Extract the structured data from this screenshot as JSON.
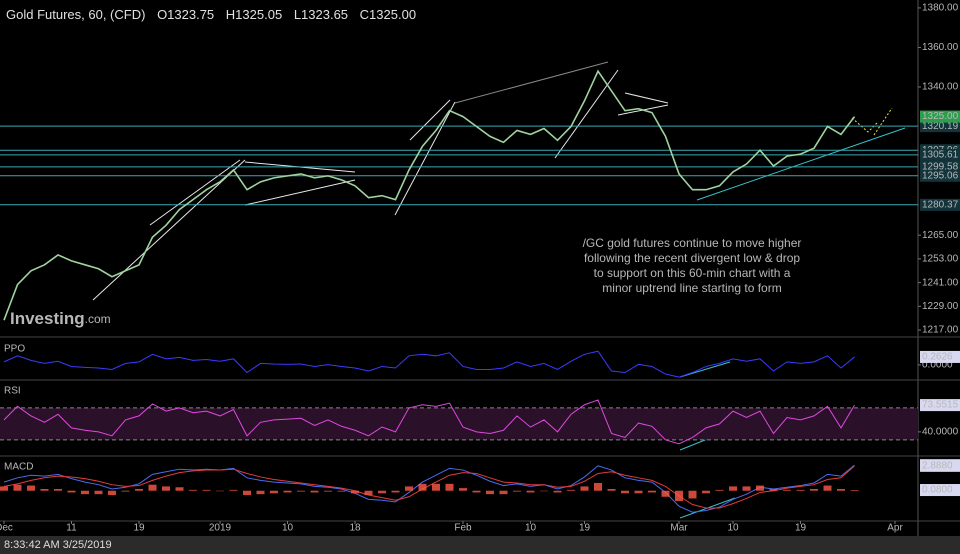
{
  "chart_data": [
    {
      "type": "line",
      "title": "Gold Futures, 60, (CFD)",
      "ohlc": [
        {
          "value": 1323.75,
          "label": "O1323.75"
        },
        {
          "value": 1325.05,
          "label": "H1325.05"
        },
        {
          "value": 1323.65,
          "label": "L1323.65"
        },
        {
          "value": 1325.0,
          "label": "C1325.00"
        }
      ],
      "categories": [
        "Dec",
        null,
        null,
        null,
        null,
        "11",
        null,
        null,
        null,
        null,
        "19",
        null,
        null,
        null,
        null,
        null,
        "2019",
        null,
        null,
        null,
        null,
        "10",
        null,
        null,
        null,
        null,
        "18",
        null,
        null,
        null,
        null,
        null,
        null,
        null,
        "Feb",
        null,
        null,
        null,
        null,
        "10",
        null,
        null,
        null,
        "19",
        null,
        null,
        null,
        null,
        null,
        null,
        "Mar",
        null,
        null,
        null,
        "10",
        null,
        null,
        null,
        null,
        "19",
        null,
        null,
        null,
        null,
        null,
        null,
        "Apr",
        null
      ],
      "series": [
        {
          "color": "#9fd39f",
          "values": [
            1222,
            1240,
            1247,
            1250,
            1255,
            1252,
            1250,
            1248,
            1244,
            1247,
            1250,
            1264,
            1270,
            1278,
            1283,
            1288,
            1292,
            1298,
            1288,
            1292,
            1294,
            1295,
            1296,
            1294,
            1295,
            1293,
            1290,
            1284,
            1285,
            1283,
            1298,
            1310,
            1318,
            1328,
            1325,
            1320,
            1315,
            1312,
            1318,
            1316,
            1319,
            1313,
            1320,
            1333,
            1348,
            1338,
            1328,
            1329,
            1327,
            1315,
            1296,
            1288,
            1288,
            1290,
            1297,
            1301,
            1308,
            1300,
            1305,
            1306,
            1309,
            1320,
            1316,
            1325,
            null,
            null,
            null,
            null
          ],
          "value_labels": [
            null,
            null,
            null,
            null,
            null,
            null,
            null,
            null,
            null,
            null,
            null,
            null,
            null,
            null,
            null,
            null,
            null,
            null,
            null,
            null,
            null,
            null,
            null,
            null,
            null,
            null,
            null,
            null,
            null,
            null,
            null,
            null,
            null,
            null,
            null,
            null,
            null,
            null,
            null,
            null,
            null,
            null,
            null,
            null,
            null,
            null,
            null,
            null,
            null,
            null,
            null,
            null,
            null,
            null,
            null,
            null,
            null,
            null,
            null,
            null,
            null,
            null,
            null,
            "1325.00",
            null,
            null,
            null,
            null
          ]
        }
      ],
      "ylim": [
        1215,
        1384
      ],
      "yticks": [
        {
          "value": 1380,
          "label": "1380.00"
        },
        {
          "value": 1360,
          "label": "1360.00"
        },
        {
          "value": 1340,
          "label": "1340.00"
        },
        {
          "value": 1265,
          "label": "1265.00"
        },
        {
          "value": 1253,
          "label": "1253.00"
        },
        {
          "value": 1241,
          "label": "1241.00"
        },
        {
          "value": 1229,
          "label": "1229.00"
        },
        {
          "value": 1217,
          "label": "1217.00"
        }
      ],
      "levels": [
        1320.19,
        1307.96,
        1305.61,
        1299.58,
        1295.06,
        1280.37
      ],
      "level_color": "#3aa8b4",
      "annotation": [
        "/GC gold futures continue to move higher",
        "following the recent divergent low & drop",
        "to support on this 60-min chart with a",
        "minor uptrend line starting to form"
      ],
      "logo": [
        "Investing",
        ".com"
      ]
    },
    {
      "type": "line",
      "title": "PPO",
      "series": [
        {
          "color": "#3b3bff",
          "values": [
            0.1,
            0.3,
            0.15,
            0.05,
            0.12,
            -0.05,
            -0.08,
            -0.1,
            -0.15,
            0.05,
            0.1,
            0.35,
            0.2,
            0.25,
            0.15,
            0.18,
            0.12,
            0.2,
            -0.25,
            0.05,
            0.03,
            0.02,
            0.03,
            -0.05,
            0.01,
            -0.05,
            -0.1,
            -0.2,
            -0.05,
            -0.1,
            0.3,
            0.35,
            0.3,
            0.4,
            -0.05,
            -0.15,
            -0.15,
            -0.1,
            0.1,
            -0.05,
            0.05,
            -0.15,
            0.12,
            0.35,
            0.45,
            -0.2,
            -0.25,
            0.02,
            -0.05,
            -0.3,
            -0.4,
            -0.25,
            -0.05,
            0.05,
            0.2,
            0.12,
            0.2,
            -0.2,
            0.1,
            0.05,
            0.1,
            0.3,
            -0.1,
            0.2626,
            null,
            null,
            null,
            null
          ]
        }
      ],
      "ylim": [
        -0.43,
        0.82
      ],
      "yticks": [
        {
          "value": 0,
          "label": "0.0000"
        }
      ]
    },
    {
      "type": "line",
      "title": "RSI",
      "series": [
        {
          "color": "#e048e0",
          "values": [
            55,
            72,
            60,
            52,
            62,
            45,
            42,
            40,
            35,
            55,
            60,
            75,
            66,
            70,
            64,
            66,
            60,
            68,
            35,
            52,
            55,
            56,
            57,
            48,
            55,
            47,
            42,
            35,
            46,
            40,
            70,
            74,
            72,
            76,
            46,
            40,
            38,
            42,
            60,
            46,
            55,
            40,
            62,
            74,
            80,
            38,
            33,
            51,
            47,
            30,
            25,
            33,
            45,
            50,
            66,
            58,
            66,
            38,
            58,
            55,
            60,
            72,
            45,
            73.5515,
            null,
            null,
            null,
            null
          ]
        }
      ],
      "ylim": [
        11,
        102.5
      ],
      "yticks": [
        {
          "value": 40,
          "label": "40.0000"
        }
      ],
      "bands": [
        30,
        70
      ],
      "band_color": "#2a1029"
    },
    {
      "type": "line",
      "title": "MACD",
      "series": [
        {
          "color": "#4a6cf0",
          "values": [
            1,
            1.5,
            1.8,
            1.7,
            1.9,
            1.4,
            1,
            0.7,
            0.2,
            0.4,
            0.8,
            1.9,
            2.2,
            2.5,
            2.4,
            2.5,
            2.4,
            2.6,
            1.5,
            1.2,
            1,
            0.9,
            0.8,
            0.5,
            0.4,
            0.2,
            -0.3,
            -1,
            -1.1,
            -1.3,
            -0.2,
            1,
            1.8,
            2.6,
            2.4,
            1.8,
            1.1,
            0.6,
            0.8,
            0.5,
            0.7,
            0.2,
            0.6,
            1.6,
            2.9,
            2.4,
            1.5,
            1.2,
            1,
            -0.2,
            -1.8,
            -2.5,
            -2.3,
            -1.9,
            -1,
            -0.4,
            0.4,
            0.2,
            0.4,
            0.6,
            0.9,
            1.9,
            1.7,
            2.968,
            null,
            null,
            null,
            null
          ],
          "value_labels": [
            null,
            null,
            null,
            null,
            null,
            null,
            null,
            null,
            null,
            null,
            null,
            null,
            null,
            null,
            null,
            null,
            null,
            null,
            null,
            null,
            null,
            null,
            null,
            null,
            null,
            null,
            null,
            null,
            null,
            null,
            null,
            null,
            null,
            null,
            null,
            null,
            null,
            null,
            null,
            null,
            null,
            null,
            null,
            null,
            null,
            null,
            null,
            null,
            null,
            null,
            null,
            null,
            null,
            null,
            null,
            null,
            null,
            null,
            null,
            null,
            null,
            null,
            null,
            "2.9680",
            null,
            null,
            null,
            null
          ]
        },
        {
          "color": "#e23c3c",
          "values": [
            0.5,
            0.8,
            1.2,
            1.5,
            1.7,
            1.6,
            1.4,
            1.1,
            0.7,
            0.5,
            0.6,
            1.2,
            1.7,
            2.1,
            2.3,
            2.4,
            2.4,
            2.5,
            2,
            1.6,
            1.3,
            1.1,
            0.9,
            0.7,
            0.5,
            0.3,
            0,
            -0.5,
            -0.8,
            -1.1,
            -0.7,
            0.2,
            1,
            1.8,
            2.1,
            2,
            1.5,
            1,
            0.9,
            0.7,
            0.7,
            0.4,
            0.5,
            1.1,
            2,
            2.2,
            1.8,
            1.5,
            1.2,
            0.5,
            -0.6,
            -1.6,
            -2,
            -2,
            -1.5,
            -0.9,
            -0.2,
            0,
            0.3,
            0.5,
            0.7,
            1.3,
            1.5,
            2.888,
            null,
            null,
            null,
            null
          ],
          "value_labels": [
            null,
            null,
            null,
            null,
            null,
            null,
            null,
            null,
            null,
            null,
            null,
            null,
            null,
            null,
            null,
            null,
            null,
            null,
            null,
            null,
            null,
            null,
            null,
            null,
            null,
            null,
            null,
            null,
            null,
            null,
            null,
            null,
            null,
            null,
            null,
            null,
            null,
            null,
            null,
            null,
            null,
            null,
            null,
            null,
            null,
            null,
            null,
            null,
            null,
            null,
            null,
            null,
            null,
            null,
            null,
            null,
            null,
            null,
            null,
            null,
            null,
            null,
            null,
            "2.8880",
            null,
            null,
            null,
            null
          ]
        },
        {
          "color": "#ff5a4a",
          "bars": true,
          "values": [
            0.5,
            0.7,
            0.6,
            0.2,
            0.2,
            -0.2,
            -0.4,
            -0.4,
            -0.5,
            -0.1,
            0.2,
            0.7,
            0.5,
            0.4,
            0.1,
            0.1,
            0,
            0.1,
            -0.5,
            -0.4,
            -0.3,
            -0.2,
            -0.1,
            -0.2,
            -0.1,
            -0.1,
            -0.3,
            -0.5,
            -0.3,
            -0.2,
            0.5,
            0.8,
            0.8,
            0.8,
            0.3,
            -0.2,
            -0.4,
            -0.4,
            -0.1,
            -0.2,
            0,
            -0.2,
            0.1,
            0.5,
            0.9,
            0.2,
            -0.3,
            -0.3,
            -0.2,
            -0.7,
            -1.2,
            -0.9,
            -0.3,
            0.1,
            0.5,
            0.5,
            0.6,
            0.2,
            0.1,
            0.1,
            0.2,
            0.6,
            0.2,
            0.08,
            null,
            null,
            null,
            null
          ],
          "value_labels": [
            null,
            null,
            null,
            null,
            null,
            null,
            null,
            null,
            null,
            null,
            null,
            null,
            null,
            null,
            null,
            null,
            null,
            null,
            null,
            null,
            null,
            null,
            null,
            null,
            null,
            null,
            null,
            null,
            null,
            null,
            null,
            null,
            null,
            null,
            null,
            null,
            null,
            null,
            null,
            null,
            null,
            null,
            null,
            null,
            null,
            null,
            null,
            null,
            null,
            null,
            null,
            null,
            null,
            null,
            null,
            null,
            null,
            null,
            null,
            null,
            null,
            null,
            null,
            "0.0800",
            null,
            null,
            null,
            null
          ]
        }
      ],
      "ylim": [
        -3.4,
        3.8
      ],
      "yticks": []
    }
  ],
  "timestamp": "8:33:42 AM 3/25/2019"
}
